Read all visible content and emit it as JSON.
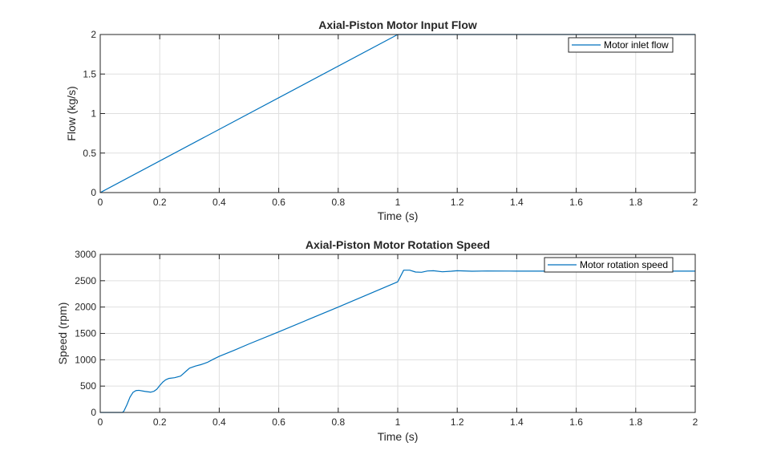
{
  "chart_data": [
    {
      "type": "line",
      "title": "Axial-Piston Motor Input Flow",
      "xlabel": "Time (s)",
      "ylabel": "Flow (kg/s)",
      "xlim": [
        0,
        2
      ],
      "ylim": [
        0,
        2
      ],
      "xticks": [
        0,
        0.2,
        0.4,
        0.6,
        0.8,
        1,
        1.2,
        1.4,
        1.6,
        1.8,
        2
      ],
      "xtick_labels": [
        "0",
        "0.2",
        "0.4",
        "0.6",
        "0.8",
        "1",
        "1.2",
        "1.4",
        "1.6",
        "1.8",
        "2"
      ],
      "yticks": [
        0,
        0.5,
        1,
        1.5,
        2
      ],
      "ytick_labels": [
        "0",
        "0.5",
        "1",
        "1.5",
        "2"
      ],
      "grid": true,
      "legend_position": "top-right",
      "series": [
        {
          "name": "Motor inlet flow",
          "color": "#0072BD",
          "x": [
            0,
            1,
            2
          ],
          "y": [
            0,
            2,
            2
          ]
        }
      ]
    },
    {
      "type": "line",
      "title": "Axial-Piston Motor Rotation Speed",
      "xlabel": "Time (s)",
      "ylabel": "Speed (rpm)",
      "xlim": [
        0,
        2
      ],
      "ylim": [
        0,
        3000
      ],
      "xticks": [
        0,
        0.2,
        0.4,
        0.6,
        0.8,
        1,
        1.2,
        1.4,
        1.6,
        1.8,
        2
      ],
      "xtick_labels": [
        "0",
        "0.2",
        "0.4",
        "0.6",
        "0.8",
        "1",
        "1.2",
        "1.4",
        "1.6",
        "1.8",
        "2"
      ],
      "yticks": [
        0,
        500,
        1000,
        1500,
        2000,
        2500,
        3000
      ],
      "ytick_labels": [
        "0",
        "500",
        "1000",
        "1500",
        "2000",
        "2500",
        "3000"
      ],
      "grid": true,
      "legend_position": "top-right",
      "series": [
        {
          "name": "Motor rotation speed",
          "color": "#0072BD",
          "x": [
            0,
            0.075,
            0.08,
            0.09,
            0.1,
            0.11,
            0.12,
            0.13,
            0.15,
            0.17,
            0.18,
            0.19,
            0.2,
            0.21,
            0.22,
            0.23,
            0.25,
            0.27,
            0.28,
            0.29,
            0.3,
            0.32,
            0.34,
            0.36,
            0.38,
            0.4,
            0.45,
            0.5,
            0.6,
            0.7,
            0.8,
            0.9,
            1.0,
            1.02,
            1.04,
            1.06,
            1.08,
            1.1,
            1.12,
            1.15,
            1.18,
            1.2,
            1.25,
            1.3,
            1.4,
            1.6,
            1.8,
            2.0
          ],
          "y": [
            0,
            0,
            30,
            150,
            290,
            380,
            415,
            420,
            400,
            385,
            400,
            440,
            510,
            575,
            620,
            645,
            660,
            690,
            740,
            790,
            840,
            880,
            910,
            950,
            1010,
            1065,
            1180,
            1300,
            1530,
            1765,
            2000,
            2240,
            2480,
            2700,
            2700,
            2665,
            2660,
            2685,
            2690,
            2670,
            2680,
            2690,
            2680,
            2685,
            2682,
            2682,
            2682,
            2682
          ]
        }
      ]
    }
  ]
}
